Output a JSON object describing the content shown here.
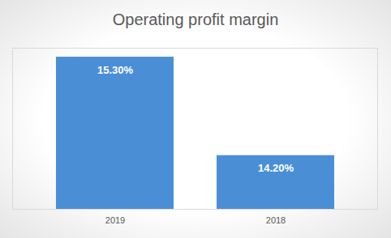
{
  "chart_data": {
    "type": "bar",
    "title": "Operating profit margin",
    "categories": [
      "2019",
      "2018"
    ],
    "values": [
      15.3,
      14.2
    ],
    "value_labels": [
      "15.30%",
      "14.20%"
    ],
    "data_labels": true,
    "color": "#4a8fd6",
    "ylim": [
      13.6,
      15.4
    ],
    "tick_labels": "x",
    "grid": false
  }
}
